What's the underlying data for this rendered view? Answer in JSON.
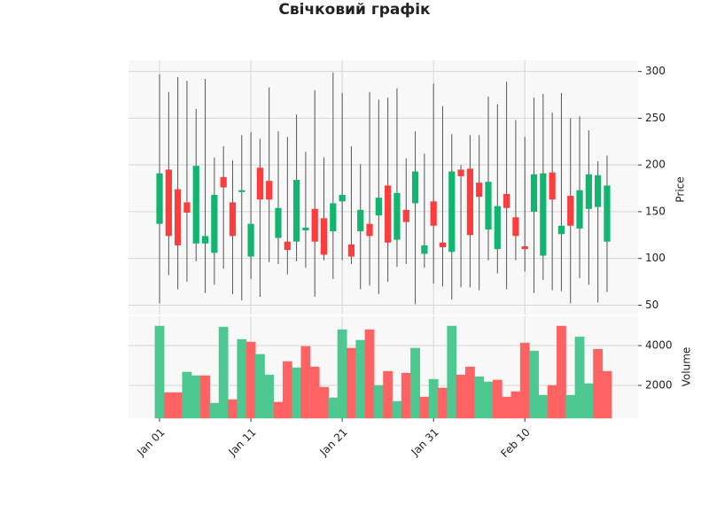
{
  "chart_data": {
    "type": "candlestick",
    "title": "Свічковий графік",
    "categories": [
      "Jan 01",
      null,
      null,
      null,
      null,
      null,
      null,
      null,
      null,
      null,
      "Jan 11",
      null,
      null,
      null,
      null,
      null,
      null,
      null,
      null,
      null,
      "Jan 21",
      null,
      null,
      null,
      null,
      null,
      null,
      null,
      null,
      null,
      "Jan 31",
      null,
      null,
      null,
      null,
      null,
      null,
      null,
      null,
      null,
      "Feb 10",
      null,
      null,
      null,
      null,
      null,
      null,
      null,
      null,
      null
    ],
    "open": [
      137,
      195,
      174,
      160,
      116,
      116,
      106,
      187,
      160,
      171,
      102,
      197,
      183,
      122,
      118,
      118,
      130,
      153,
      143,
      129,
      161,
      115,
      129,
      137,
      146,
      178,
      120,
      152,
      159,
      105,
      161,
      117,
      107,
      195,
      196,
      181,
      131,
      110,
      169,
      144,
      113,
      150,
      103,
      192,
      126,
      167,
      132,
      153,
      155,
      118
    ],
    "high": [
      297,
      278,
      294,
      290,
      260,
      292,
      208,
      220,
      205,
      232,
      235,
      228,
      283,
      236,
      230,
      254,
      214,
      280,
      208,
      299,
      277,
      220,
      201,
      278,
      270,
      272,
      282,
      207,
      236,
      212,
      287,
      263,
      233,
      200,
      232,
      232,
      273,
      265,
      289,
      248,
      230,
      272,
      276,
      256,
      277,
      250,
      252,
      237,
      204,
      210
    ],
    "low": [
      52,
      82,
      67,
      75,
      97,
      63,
      72,
      89,
      62,
      55,
      78,
      59,
      96,
      94,
      83,
      97,
      90,
      59,
      98,
      78,
      98,
      94,
      67,
      71,
      62,
      75,
      91,
      94,
      51,
      90,
      73,
      70,
      56,
      69,
      69,
      66,
      98,
      84,
      67,
      98,
      86,
      63,
      77,
      66,
      65,
      52,
      79,
      72,
      53,
      64
    ],
    "close": [
      191,
      124,
      114,
      149,
      199,
      124,
      168,
      176,
      124,
      173,
      137,
      163,
      163,
      154,
      109,
      184,
      133,
      118,
      104,
      159,
      168,
      102,
      152,
      124,
      165,
      117,
      170,
      139,
      193,
      114,
      135,
      112,
      193,
      188,
      125,
      166,
      182,
      156,
      154,
      124,
      110,
      190,
      191,
      163,
      135,
      135,
      173,
      190,
      189,
      178
    ],
    "up_color": "#12b56f",
    "down_color": "#fc3d3d",
    "ylabel": "Price",
    "ylim": [
      40,
      312
    ],
    "yticks": [
      50,
      100,
      150,
      200,
      250,
      300
    ],
    "xlim": [
      -3.4,
      52.4
    ],
    "grid": true,
    "volume": {
      "ylabel": "Volume",
      "ylim": [
        355,
        5470
      ],
      "yticks": [
        2000,
        4000
      ],
      "values": [
        4980,
        1640,
        1640,
        2670,
        2490,
        2490,
        1110,
        4930,
        1290,
        4310,
        4180,
        3560,
        2530,
        1160,
        3200,
        2890,
        3960,
        2930,
        1910,
        1380,
        4800,
        3870,
        4270,
        4800,
        2000,
        2710,
        1200,
        2620,
        3870,
        1420,
        2310,
        1870,
        4980,
        2530,
        2930,
        2440,
        2180,
        2270,
        1420,
        1690,
        4130,
        3730,
        1510,
        2000,
        4980,
        1510,
        4440,
        2090,
        3820,
        2710
      ],
      "colors": [
        "#4cc890",
        "#ff6262",
        "#ff6262",
        "#4cc890",
        "#4cc890",
        "#ff6262",
        "#4cc890",
        "#4cc890",
        "#ff6262",
        "#4cc890",
        "#ff6262",
        "#4cc890",
        "#4cc890",
        "#ff6262",
        "#ff6262",
        "#4cc890",
        "#ff6262",
        "#ff6262",
        "#ff6262",
        "#4cc890",
        "#4cc890",
        "#ff6262",
        "#4cc890",
        "#ff6262",
        "#4cc890",
        "#ff6262",
        "#4cc890",
        "#ff6262",
        "#4cc890",
        "#ff6262",
        "#4cc890",
        "#ff6262",
        "#4cc890",
        "#ff6262",
        "#ff6262",
        "#4cc890",
        "#4cc890",
        "#ff6262",
        "#ff6262",
        "#ff6262",
        "#ff6262",
        "#4cc890",
        "#4cc890",
        "#ff6262",
        "#ff6262",
        "#4cc890",
        "#4cc890",
        "#4cc890",
        "#ff6262",
        "#ff6262"
      ]
    }
  }
}
